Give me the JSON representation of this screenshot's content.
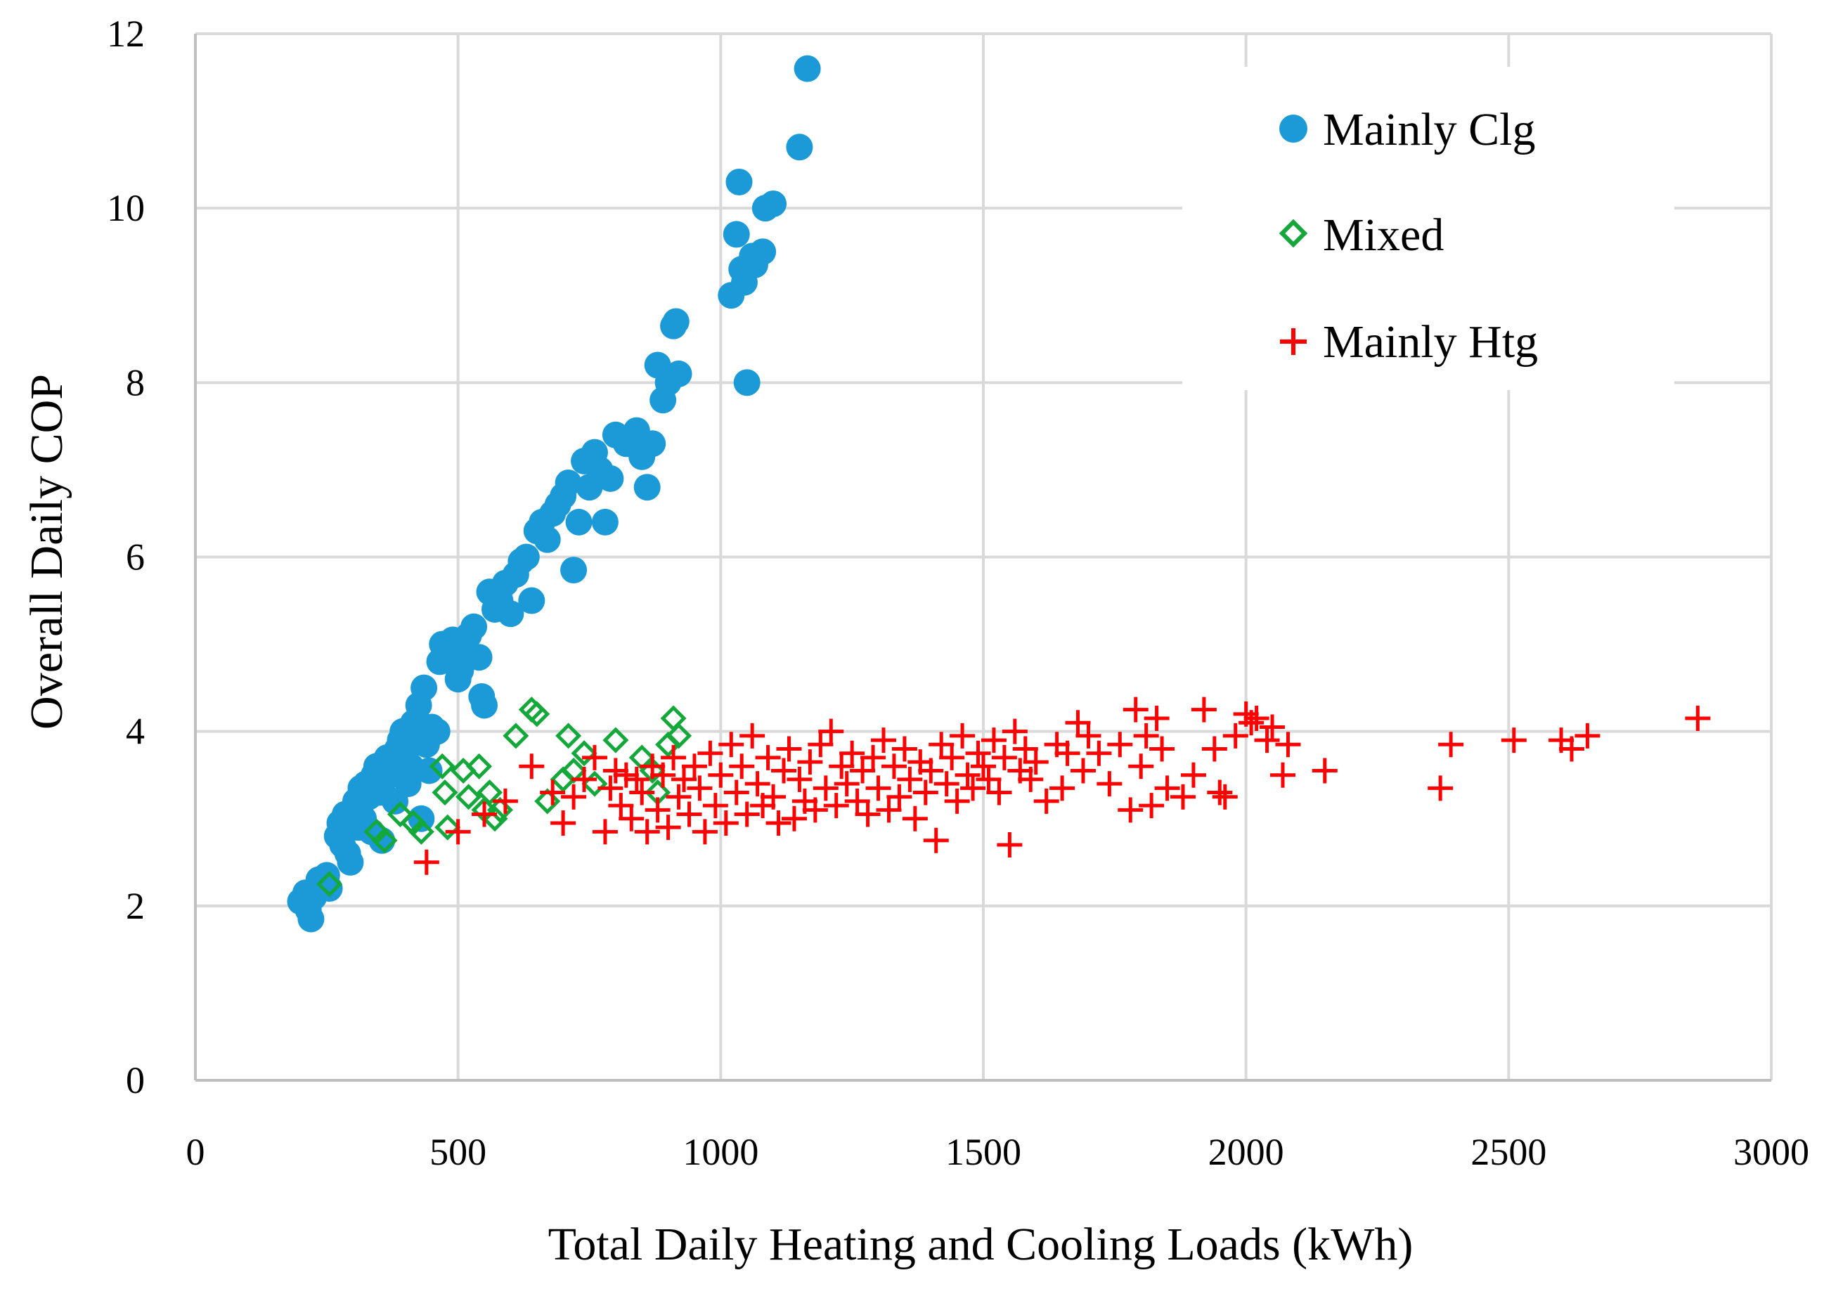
{
  "chart_data": {
    "type": "scatter",
    "title": "",
    "xlabel": "Total Daily Heating and Cooling Loads (kWh)",
    "ylabel": "Overall Daily COP",
    "xlim": [
      0,
      3000
    ],
    "ylim": [
      0,
      12
    ],
    "xticks": [
      0,
      500,
      1000,
      1500,
      2000,
      2500,
      3000
    ],
    "yticks": [
      0,
      2,
      4,
      6,
      8,
      10,
      12
    ],
    "grid": true,
    "legend_position": "top-right",
    "colors": {
      "clg": "#1B9AD7",
      "mixed": "#14A83B",
      "htg": "#FF0000",
      "grid": "#D9D9D9",
      "axis": "#BFBFBF"
    },
    "series": [
      {
        "name": "Mainly Clg",
        "marker": "circle",
        "color": "#1B9AD7",
        "points": [
          [
            200,
            2.05
          ],
          [
            210,
            2.15
          ],
          [
            215,
            1.95
          ],
          [
            220,
            1.85
          ],
          [
            225,
            2.1
          ],
          [
            230,
            2.2
          ],
          [
            235,
            2.3
          ],
          [
            240,
            2.25
          ],
          [
            250,
            2.35
          ],
          [
            255,
            2.2
          ],
          [
            270,
            2.8
          ],
          [
            275,
            2.95
          ],
          [
            280,
            2.7
          ],
          [
            285,
            3.05
          ],
          [
            290,
            2.6
          ],
          [
            295,
            2.5
          ],
          [
            300,
            3.1
          ],
          [
            305,
            3.2
          ],
          [
            310,
            2.9
          ],
          [
            315,
            3.35
          ],
          [
            320,
            3.0
          ],
          [
            325,
            3.4
          ],
          [
            330,
            3.25
          ],
          [
            335,
            2.85
          ],
          [
            340,
            3.5
          ],
          [
            345,
            3.6
          ],
          [
            350,
            3.3
          ],
          [
            355,
            2.75
          ],
          [
            360,
            3.45
          ],
          [
            365,
            3.7
          ],
          [
            370,
            3.55
          ],
          [
            375,
            3.65
          ],
          [
            380,
            3.2
          ],
          [
            385,
            3.8
          ],
          [
            390,
            3.9
          ],
          [
            395,
            4.0
          ],
          [
            400,
            3.75
          ],
          [
            405,
            3.4
          ],
          [
            410,
            3.6
          ],
          [
            415,
            4.1
          ],
          [
            420,
            3.95
          ],
          [
            425,
            4.3
          ],
          [
            430,
            3.0
          ],
          [
            435,
            4.5
          ],
          [
            440,
            3.85
          ],
          [
            445,
            3.55
          ],
          [
            450,
            4.05
          ],
          [
            460,
            4.0
          ],
          [
            465,
            4.8
          ],
          [
            470,
            5.0
          ],
          [
            480,
            4.85
          ],
          [
            490,
            5.05
          ],
          [
            500,
            4.6
          ],
          [
            505,
            4.7
          ],
          [
            510,
            4.9
          ],
          [
            520,
            5.1
          ],
          [
            530,
            5.2
          ],
          [
            540,
            4.85
          ],
          [
            545,
            4.4
          ],
          [
            550,
            4.3
          ],
          [
            560,
            5.6
          ],
          [
            570,
            5.4
          ],
          [
            580,
            5.5
          ],
          [
            590,
            5.7
          ],
          [
            600,
            5.35
          ],
          [
            610,
            5.8
          ],
          [
            620,
            5.95
          ],
          [
            630,
            6.0
          ],
          [
            640,
            5.5
          ],
          [
            650,
            6.3
          ],
          [
            660,
            6.4
          ],
          [
            670,
            6.2
          ],
          [
            680,
            6.5
          ],
          [
            690,
            6.6
          ],
          [
            700,
            6.7
          ],
          [
            710,
            6.85
          ],
          [
            720,
            5.85
          ],
          [
            730,
            6.4
          ],
          [
            740,
            7.1
          ],
          [
            750,
            6.8
          ],
          [
            760,
            7.2
          ],
          [
            770,
            7.0
          ],
          [
            780,
            6.4
          ],
          [
            790,
            6.9
          ],
          [
            800,
            7.4
          ],
          [
            820,
            7.3
          ],
          [
            840,
            7.45
          ],
          [
            850,
            7.15
          ],
          [
            860,
            6.8
          ],
          [
            870,
            7.3
          ],
          [
            880,
            8.2
          ],
          [
            890,
            7.8
          ],
          [
            900,
            8.0
          ],
          [
            910,
            8.65
          ],
          [
            915,
            8.7
          ],
          [
            920,
            8.1
          ],
          [
            1020,
            9.0
          ],
          [
            1030,
            9.7
          ],
          [
            1035,
            10.3
          ],
          [
            1040,
            9.3
          ],
          [
            1045,
            9.15
          ],
          [
            1050,
            8.0
          ],
          [
            1060,
            9.45
          ],
          [
            1065,
            9.35
          ],
          [
            1080,
            9.5
          ],
          [
            1085,
            10.0
          ],
          [
            1100,
            10.05
          ],
          [
            1150,
            10.7
          ],
          [
            1165,
            11.6
          ]
        ]
      },
      {
        "name": "Mixed",
        "marker": "diamond",
        "color": "#14A83B",
        "points": [
          [
            255,
            2.25
          ],
          [
            345,
            2.85
          ],
          [
            360,
            2.75
          ],
          [
            390,
            3.05
          ],
          [
            415,
            2.95
          ],
          [
            430,
            2.85
          ],
          [
            470,
            3.6
          ],
          [
            475,
            3.3
          ],
          [
            480,
            2.9
          ],
          [
            510,
            3.55
          ],
          [
            520,
            3.25
          ],
          [
            540,
            3.6
          ],
          [
            550,
            3.1
          ],
          [
            560,
            3.3
          ],
          [
            570,
            3.0
          ],
          [
            580,
            3.1
          ],
          [
            610,
            3.95
          ],
          [
            640,
            4.25
          ],
          [
            650,
            4.2
          ],
          [
            670,
            3.2
          ],
          [
            700,
            3.45
          ],
          [
            710,
            3.95
          ],
          [
            720,
            3.55
          ],
          [
            740,
            3.75
          ],
          [
            760,
            3.4
          ],
          [
            800,
            3.9
          ],
          [
            850,
            3.7
          ],
          [
            870,
            3.55
          ],
          [
            900,
            3.85
          ],
          [
            910,
            4.15
          ],
          [
            920,
            3.95
          ],
          [
            880,
            3.3
          ]
        ]
      },
      {
        "name": "Mainly Htg",
        "marker": "plus",
        "color": "#FF0000",
        "points": [
          [
            440,
            2.5
          ],
          [
            500,
            2.85
          ],
          [
            550,
            3.05
          ],
          [
            590,
            3.2
          ],
          [
            640,
            3.6
          ],
          [
            680,
            3.3
          ],
          [
            700,
            2.95
          ],
          [
            720,
            3.25
          ],
          [
            740,
            3.45
          ],
          [
            760,
            3.7
          ],
          [
            780,
            2.85
          ],
          [
            790,
            3.35
          ],
          [
            800,
            3.55
          ],
          [
            810,
            3.15
          ],
          [
            820,
            3.5
          ],
          [
            830,
            3.0
          ],
          [
            840,
            3.45
          ],
          [
            850,
            3.3
          ],
          [
            860,
            2.85
          ],
          [
            870,
            3.6
          ],
          [
            880,
            3.1
          ],
          [
            890,
            3.5
          ],
          [
            900,
            2.9
          ],
          [
            910,
            3.7
          ],
          [
            920,
            3.25
          ],
          [
            930,
            3.45
          ],
          [
            940,
            3.05
          ],
          [
            950,
            3.6
          ],
          [
            960,
            3.35
          ],
          [
            970,
            2.85
          ],
          [
            980,
            3.75
          ],
          [
            990,
            3.15
          ],
          [
            1000,
            3.5
          ],
          [
            1010,
            2.95
          ],
          [
            1020,
            3.85
          ],
          [
            1030,
            3.3
          ],
          [
            1040,
            3.6
          ],
          [
            1050,
            3.05
          ],
          [
            1060,
            3.95
          ],
          [
            1070,
            3.4
          ],
          [
            1080,
            3.15
          ],
          [
            1090,
            3.7
          ],
          [
            1100,
            3.25
          ],
          [
            1110,
            2.95
          ],
          [
            1120,
            3.55
          ],
          [
            1130,
            3.8
          ],
          [
            1140,
            3.0
          ],
          [
            1150,
            3.45
          ],
          [
            1160,
            3.2
          ],
          [
            1170,
            3.65
          ],
          [
            1180,
            3.1
          ],
          [
            1190,
            3.85
          ],
          [
            1200,
            3.35
          ],
          [
            1210,
            4.0
          ],
          [
            1220,
            3.15
          ],
          [
            1230,
            3.6
          ],
          [
            1240,
            3.4
          ],
          [
            1250,
            3.75
          ],
          [
            1260,
            3.2
          ],
          [
            1270,
            3.55
          ],
          [
            1280,
            3.05
          ],
          [
            1290,
            3.7
          ],
          [
            1300,
            3.35
          ],
          [
            1310,
            3.9
          ],
          [
            1320,
            3.1
          ],
          [
            1330,
            3.6
          ],
          [
            1340,
            3.25
          ],
          [
            1350,
            3.8
          ],
          [
            1360,
            3.45
          ],
          [
            1370,
            3.0
          ],
          [
            1380,
            3.65
          ],
          [
            1390,
            3.3
          ],
          [
            1400,
            3.55
          ],
          [
            1410,
            2.75
          ],
          [
            1420,
            3.85
          ],
          [
            1430,
            3.4
          ],
          [
            1440,
            3.7
          ],
          [
            1450,
            3.2
          ],
          [
            1460,
            3.95
          ],
          [
            1470,
            3.5
          ],
          [
            1480,
            3.35
          ],
          [
            1490,
            3.75
          ],
          [
            1500,
            3.6
          ],
          [
            1510,
            3.45
          ],
          [
            1520,
            3.9
          ],
          [
            1530,
            3.3
          ],
          [
            1540,
            3.7
          ],
          [
            1550,
            2.7
          ],
          [
            1560,
            4.0
          ],
          [
            1570,
            3.55
          ],
          [
            1580,
            3.8
          ],
          [
            1590,
            3.45
          ],
          [
            1600,
            3.65
          ],
          [
            1620,
            3.2
          ],
          [
            1640,
            3.85
          ],
          [
            1650,
            3.35
          ],
          [
            1660,
            3.75
          ],
          [
            1680,
            4.1
          ],
          [
            1690,
            3.55
          ],
          [
            1700,
            3.95
          ],
          [
            1720,
            3.75
          ],
          [
            1740,
            3.4
          ],
          [
            1760,
            3.85
          ],
          [
            1780,
            3.1
          ],
          [
            1790,
            4.25
          ],
          [
            1800,
            3.6
          ],
          [
            1810,
            3.95
          ],
          [
            1820,
            3.15
          ],
          [
            1830,
            4.15
          ],
          [
            1840,
            3.8
          ],
          [
            1850,
            3.35
          ],
          [
            1880,
            3.25
          ],
          [
            1900,
            3.5
          ],
          [
            1920,
            4.25
          ],
          [
            1940,
            3.8
          ],
          [
            1950,
            3.3
          ],
          [
            1960,
            3.25
          ],
          [
            1980,
            3.95
          ],
          [
            2000,
            4.2
          ],
          [
            2010,
            4.1
          ],
          [
            2020,
            4.15
          ],
          [
            2040,
            3.9
          ],
          [
            2050,
            4.05
          ],
          [
            2070,
            3.5
          ],
          [
            2080,
            3.85
          ],
          [
            2150,
            3.55
          ],
          [
            2370,
            3.35
          ],
          [
            2390,
            3.85
          ],
          [
            2510,
            3.9
          ],
          [
            2600,
            3.9
          ],
          [
            2620,
            3.8
          ],
          [
            2650,
            3.95
          ],
          [
            2860,
            4.15
          ]
        ]
      }
    ]
  }
}
